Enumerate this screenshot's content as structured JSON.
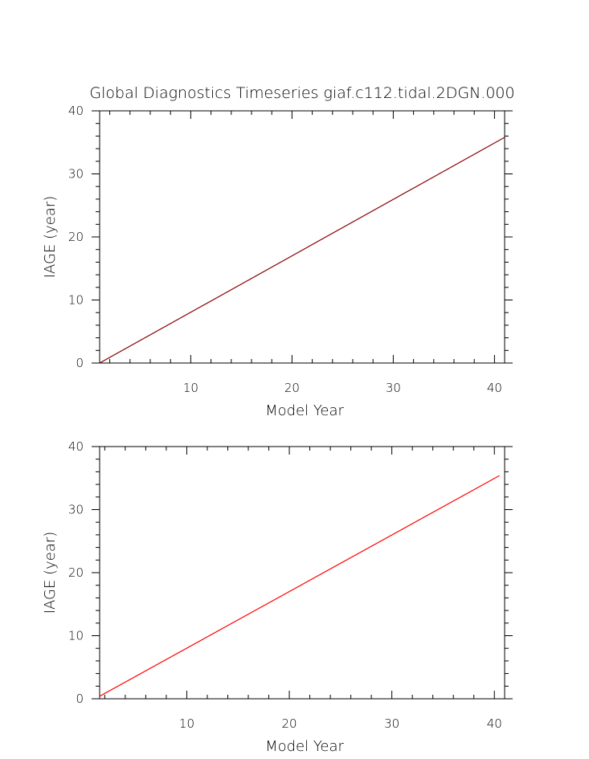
{
  "figure": {
    "title": "Global Diagnostics Timeseries giaf.c112.tidal.2DGN.000"
  },
  "colors": {
    "axis": "#000000",
    "series_dark": "#8b0000",
    "series_red": "#ff0000"
  },
  "chart_data": [
    {
      "type": "line",
      "title": "Global Diagnostics Timeseries giaf.c112.tidal.2DGN.000",
      "xlabel": "Model Year",
      "ylabel": "IAGE (year)",
      "xlim": [
        1,
        41
      ],
      "ylim": [
        0,
        40
      ],
      "xticks": [
        10,
        20,
        30,
        40
      ],
      "yticks": [
        0,
        10,
        20,
        30,
        40
      ],
      "grid": false,
      "series": [
        {
          "color": "#8b0000",
          "x": [
            1,
            41
          ],
          "y": [
            0,
            35.8
          ]
        }
      ]
    },
    {
      "type": "line",
      "title": "",
      "xlabel": "Model Year",
      "ylabel": "IAGE (year)",
      "xlim": [
        1.5,
        41
      ],
      "ylim": [
        0,
        40
      ],
      "xticks": [
        10,
        20,
        30,
        40
      ],
      "yticks": [
        0,
        10,
        20,
        30,
        40
      ],
      "grid": false,
      "series": [
        {
          "color": "#ff0000",
          "x": [
            1.5,
            40.5
          ],
          "y": [
            0.4,
            35.4
          ]
        }
      ]
    }
  ]
}
